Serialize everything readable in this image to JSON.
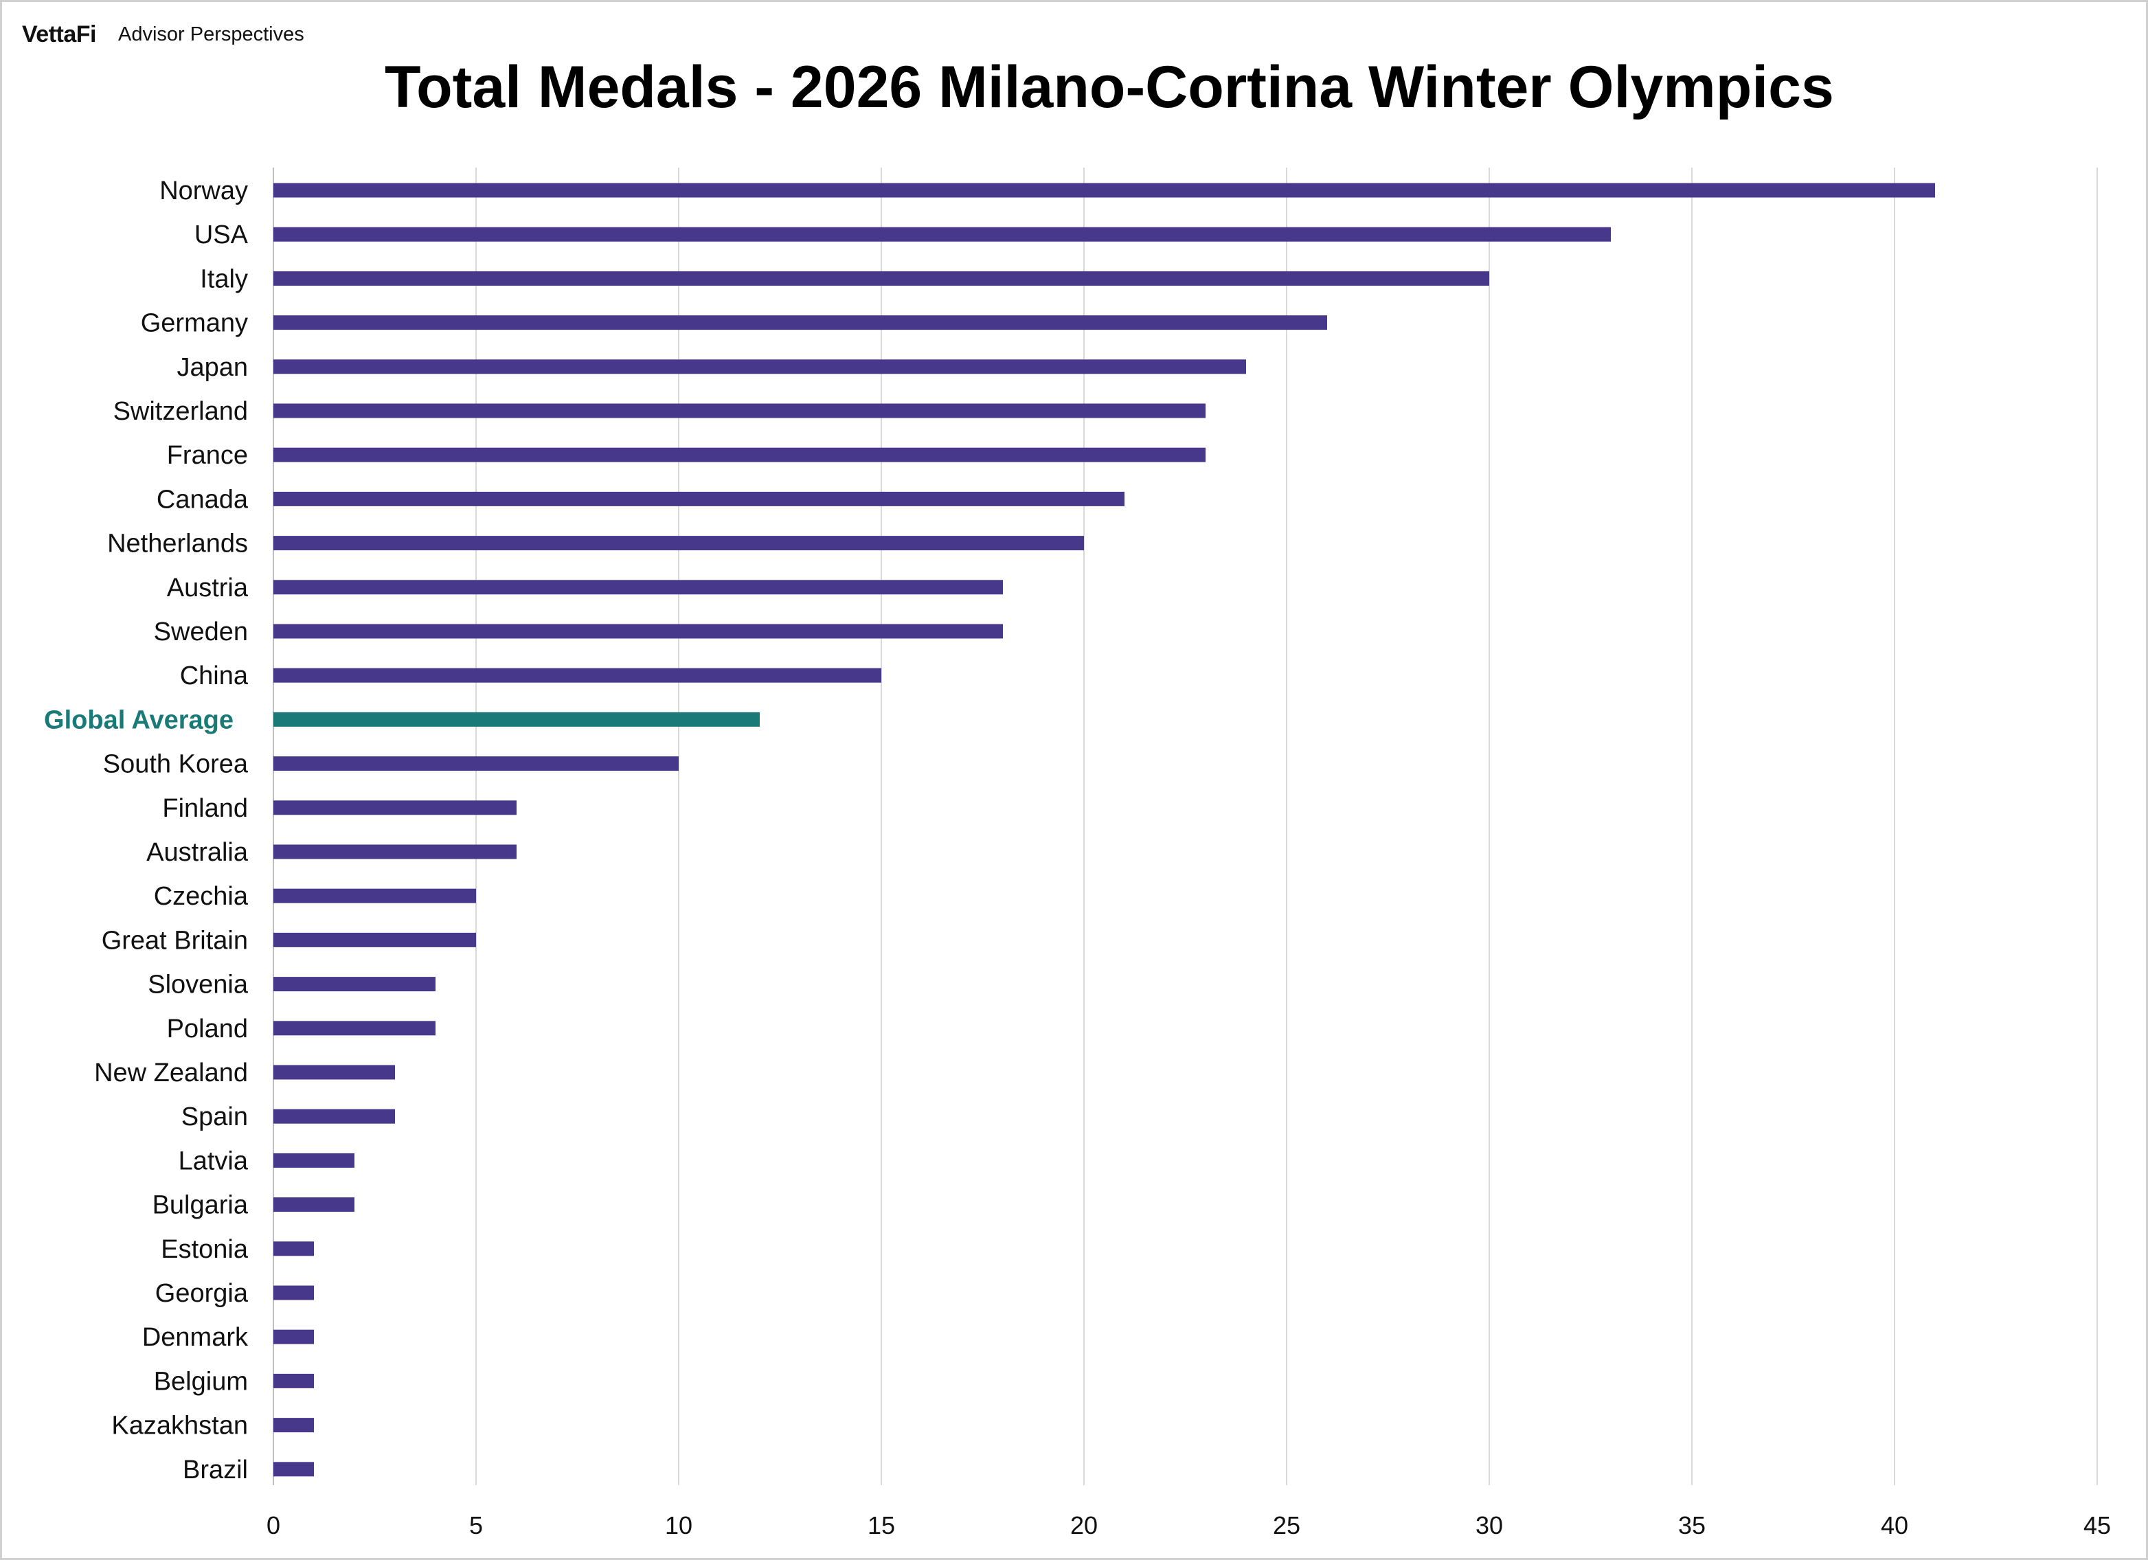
{
  "brand": {
    "logo_text": "VettaFi",
    "name": "Advisor Perspectives"
  },
  "colors": {
    "bar": "#48388c",
    "highlight_bar": "#1a7a78",
    "gridline": "#d9d9d9"
  },
  "chart_data": {
    "type": "bar",
    "orientation": "horizontal",
    "title": "Total Medals - 2026 Milano-Cortina Winter Olympics",
    "xlabel": "",
    "ylabel": "",
    "xlim": [
      0,
      45
    ],
    "xticks": [
      0,
      5,
      10,
      15,
      20,
      25,
      30,
      35,
      40,
      45
    ],
    "grid": "vertical",
    "legend": "none",
    "categories": [
      "Norway",
      "USA",
      "Italy",
      "Germany",
      "Japan",
      "Switzerland",
      "France",
      "Canada",
      "Netherlands",
      "Austria",
      "Sweden",
      "China",
      "Global Average",
      "South Korea",
      "Finland",
      "Australia",
      "Czechia",
      "Great Britain",
      "Slovenia",
      "Poland",
      "New Zealand",
      "Spain",
      "Latvia",
      "Bulgaria",
      "Estonia",
      "Georgia",
      "Denmark",
      "Belgium",
      "Kazakhstan",
      "Brazil"
    ],
    "values": [
      41,
      33,
      30,
      26,
      24,
      23,
      23,
      21,
      20,
      18,
      18,
      15,
      12,
      10,
      6,
      6,
      5,
      5,
      4,
      4,
      3,
      3,
      2,
      2,
      1,
      1,
      1,
      1,
      1,
      1
    ],
    "highlight": "Global Average"
  }
}
